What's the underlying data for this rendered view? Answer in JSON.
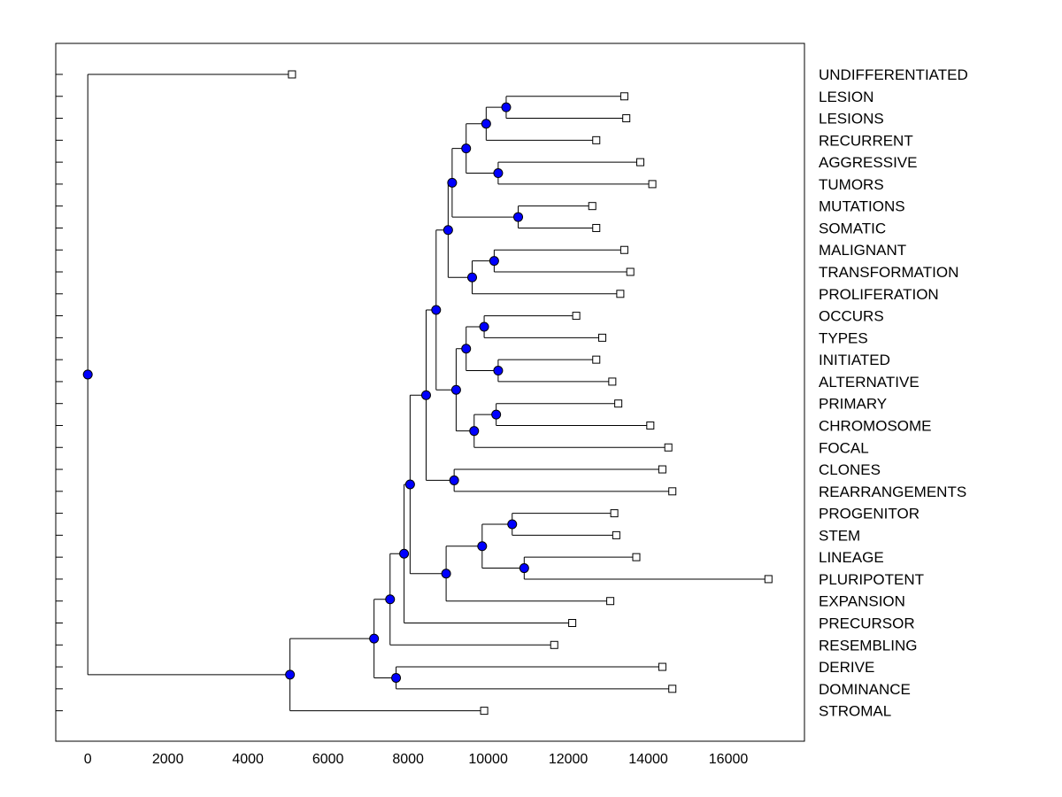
{
  "chart_data": {
    "type": "dendrogram",
    "orientation": "horizontal",
    "title": "",
    "xlabel": "",
    "ylabel": "",
    "xlim": [
      -800,
      17900
    ],
    "x_ticks": [
      0,
      2000,
      4000,
      6000,
      8000,
      10000,
      12000,
      14000,
      16000
    ],
    "colors": {
      "node": "#0000ff",
      "line": "#000000",
      "leaf_fill": "#ffffff"
    },
    "leaves": [
      {
        "label": "UNDIFFERENTIATED",
        "x": 5100
      },
      {
        "label": "LESION",
        "x": 13400
      },
      {
        "label": "LESIONS",
        "x": 13450
      },
      {
        "label": "RECURRENT",
        "x": 12700
      },
      {
        "label": "AGGRESSIVE",
        "x": 13800
      },
      {
        "label": "TUMORS",
        "x": 14100
      },
      {
        "label": "MUTATIONS",
        "x": 12600
      },
      {
        "label": "SOMATIC",
        "x": 12700
      },
      {
        "label": "MALIGNANT",
        "x": 13400
      },
      {
        "label": "TRANSFORMATION",
        "x": 13550
      },
      {
        "label": "PROLIFERATION",
        "x": 13300
      },
      {
        "label": "OCCURS",
        "x": 12200
      },
      {
        "label": "TYPES",
        "x": 12850
      },
      {
        "label": "INITIATED",
        "x": 12700
      },
      {
        "label": "ALTERNATIVE",
        "x": 13100
      },
      {
        "label": "PRIMARY",
        "x": 13250
      },
      {
        "label": "CHROMOSOME",
        "x": 14050
      },
      {
        "label": "FOCAL",
        "x": 14500
      },
      {
        "label": "CLONES",
        "x": 14350
      },
      {
        "label": "REARRANGEMENTS",
        "x": 14600
      },
      {
        "label": "PROGENITOR",
        "x": 13150
      },
      {
        "label": "STEM",
        "x": 13200
      },
      {
        "label": "LINEAGE",
        "x": 13700
      },
      {
        "label": "PLURIPOTENT",
        "x": 17000
      },
      {
        "label": "EXPANSION",
        "x": 13050
      },
      {
        "label": "PRECURSOR",
        "x": 12100
      },
      {
        "label": "RESEMBLING",
        "x": 11650
      },
      {
        "label": "DERIVE",
        "x": 14350
      },
      {
        "label": "DOMINANCE",
        "x": 14600
      },
      {
        "label": "STROMAL",
        "x": 9900
      }
    ],
    "merges": [
      {
        "id": "n1",
        "x": 10450,
        "children": [
          "L1",
          "L2"
        ]
      },
      {
        "id": "n2",
        "x": 9950,
        "children": [
          "n1",
          "L3"
        ]
      },
      {
        "id": "n3",
        "x": 10250,
        "children": [
          "L4",
          "L5"
        ]
      },
      {
        "id": "n4",
        "x": 9450,
        "children": [
          "n2",
          "n3"
        ]
      },
      {
        "id": "n5",
        "x": 10750,
        "children": [
          "L6",
          "L7"
        ]
      },
      {
        "id": "n6",
        "x": 9100,
        "children": [
          "n4",
          "n5"
        ]
      },
      {
        "id": "n7",
        "x": 10150,
        "children": [
          "L8",
          "L9"
        ]
      },
      {
        "id": "n8",
        "x": 9600,
        "children": [
          "n7",
          "L10"
        ]
      },
      {
        "id": "n9",
        "x": 9000,
        "children": [
          "n6",
          "n8"
        ]
      },
      {
        "id": "n10",
        "x": 9900,
        "children": [
          "L11",
          "L12"
        ]
      },
      {
        "id": "n11",
        "x": 10250,
        "children": [
          "L13",
          "L14"
        ]
      },
      {
        "id": "n12",
        "x": 9450,
        "children": [
          "n10",
          "n11"
        ]
      },
      {
        "id": "n13",
        "x": 10200,
        "children": [
          "L15",
          "L16"
        ]
      },
      {
        "id": "n14",
        "x": 9650,
        "children": [
          "n13",
          "L17"
        ]
      },
      {
        "id": "n15",
        "x": 9200,
        "children": [
          "n12",
          "n14"
        ]
      },
      {
        "id": "n16",
        "x": 8700,
        "children": [
          "n9",
          "n15"
        ]
      },
      {
        "id": "n17",
        "x": 9150,
        "children": [
          "L18",
          "L19"
        ]
      },
      {
        "id": "n18",
        "x": 8450,
        "children": [
          "n16",
          "n17"
        ]
      },
      {
        "id": "n19",
        "x": 10600,
        "children": [
          "L20",
          "L21"
        ]
      },
      {
        "id": "n20",
        "x": 10900,
        "children": [
          "L22",
          "L23"
        ]
      },
      {
        "id": "n21",
        "x": 9850,
        "children": [
          "n19",
          "n20"
        ]
      },
      {
        "id": "n22",
        "x": 8950,
        "children": [
          "n21",
          "L24"
        ]
      },
      {
        "id": "n23",
        "x": 8050,
        "children": [
          "n18",
          "n22"
        ]
      },
      {
        "id": "n24",
        "x": 7900,
        "children": [
          "n23",
          "L25"
        ]
      },
      {
        "id": "n25",
        "x": 7550,
        "children": [
          "n24",
          "L26"
        ]
      },
      {
        "id": "n26",
        "x": 7700,
        "children": [
          "L27",
          "L28"
        ]
      },
      {
        "id": "n27",
        "x": 7150,
        "children": [
          "n25",
          "n26"
        ]
      },
      {
        "id": "n28",
        "x": 5050,
        "children": [
          "n27",
          "L29"
        ]
      },
      {
        "id": "n29",
        "x": 0,
        "children": [
          "L0",
          "n28"
        ]
      }
    ]
  }
}
